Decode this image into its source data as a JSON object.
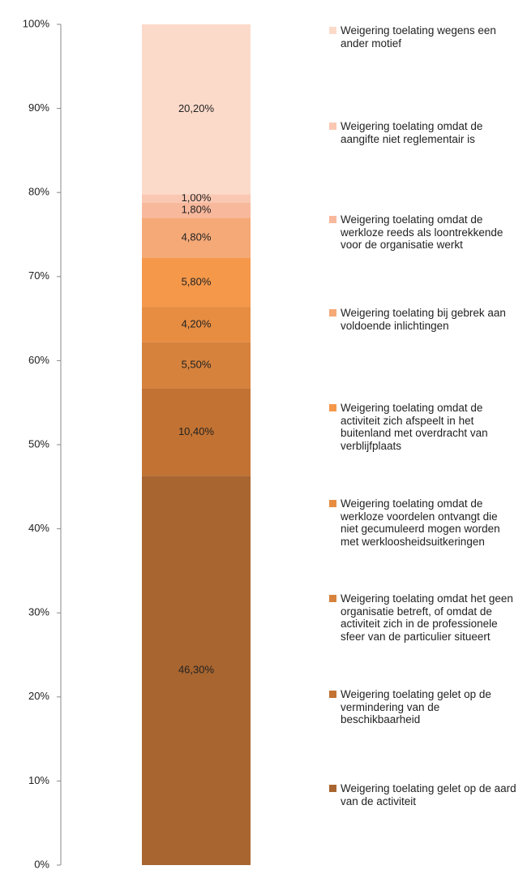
{
  "chart_data": {
    "type": "stacked_bar",
    "categories": [
      null
    ],
    "ylim": [
      0,
      100
    ],
    "yticks": [
      {
        "value": 0,
        "label": "0%"
      },
      {
        "value": 10,
        "label": "10%"
      },
      {
        "value": 20,
        "label": "20%"
      },
      {
        "value": 30,
        "label": "30%"
      },
      {
        "value": 40,
        "label": "40%"
      },
      {
        "value": 50,
        "label": "50%"
      },
      {
        "value": 60,
        "label": "60%"
      },
      {
        "value": 70,
        "label": "70%"
      },
      {
        "value": 80,
        "label": "80%"
      },
      {
        "value": 90,
        "label": "90%"
      },
      {
        "value": 100,
        "label": "100%"
      }
    ],
    "legend": "right",
    "series": [
      {
        "name": "Weigering toelating gelet op de aard van de activiteit",
        "color": "#a86530",
        "values": [
          46.3
        ],
        "value_labels": [
          "46,30%"
        ]
      },
      {
        "name": "Weigering toelating gelet op de vermindering van de beschikbaarheid",
        "color": "#c27232",
        "values": [
          10.4
        ],
        "value_labels": [
          "10,40%"
        ]
      },
      {
        "name": "Weigering toelating omdat het geen organisatie betreft, of omdat de activiteit zich in de professionele sfeer van de particulier situeert",
        "color": "#d6823c",
        "values": [
          5.5
        ],
        "value_labels": [
          "5,50%"
        ]
      },
      {
        "name": "Weigering toelating omdat de werkloze voordelen ontvangt die niet gecumuleerd mogen worden met werkloosheidsuitkeringen",
        "color": "#e68d42",
        "values": [
          4.2
        ],
        "value_labels": [
          "4,20%"
        ]
      },
      {
        "name": "Weigering toelating omdat de activiteit zich afspeelt in het buitenland met overdracht van verblijfplaats",
        "color": "#f5984a",
        "values": [
          5.8
        ],
        "value_labels": [
          "5,80%"
        ]
      },
      {
        "name": "Weigering toelating bij gebrek aan voldoende inlichtingen",
        "color": "#f5a977",
        "values": [
          4.8
        ],
        "value_labels": [
          "4,80%"
        ]
      },
      {
        "name": "Weigering toelating omdat de werkloze reeds als loontrekkende voor de organisatie werkt",
        "color": "#f8b89c",
        "values": [
          1.8
        ],
        "value_labels": [
          "1,80%"
        ]
      },
      {
        "name": "Weigering toelating omdat de aangifte niet reglementair is",
        "color": "#fac8b2",
        "values": [
          1.0
        ],
        "value_labels": [
          "1,00%"
        ]
      },
      {
        "name": "Weigering toelating wegens een ander motief",
        "color": "#fcdaca",
        "values": [
          20.2
        ],
        "value_labels": [
          "20,20%"
        ]
      }
    ]
  }
}
